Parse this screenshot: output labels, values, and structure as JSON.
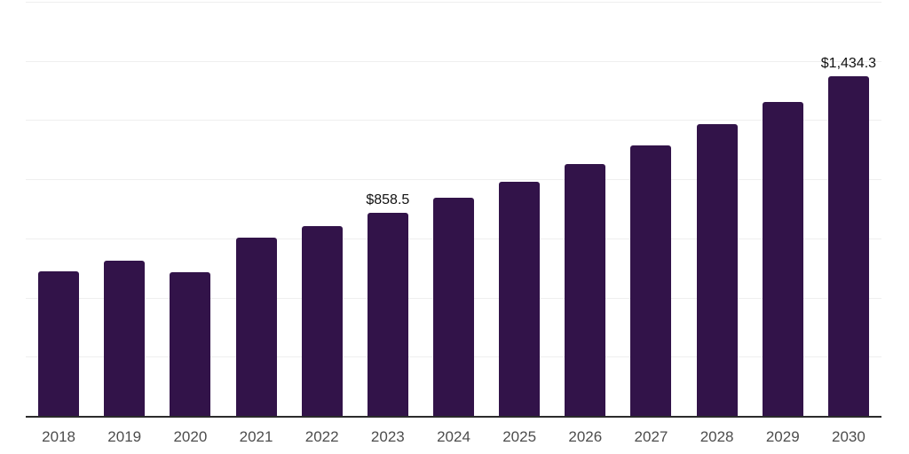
{
  "chart_data": {
    "type": "bar",
    "title": "",
    "xlabel": "",
    "ylabel": "",
    "categories": [
      "2018",
      "2019",
      "2020",
      "2021",
      "2022",
      "2023",
      "2024",
      "2025",
      "2026",
      "2027",
      "2028",
      "2029",
      "2030"
    ],
    "values": [
      610,
      656,
      608,
      754,
      803,
      858.5,
      921,
      990,
      1063,
      1143,
      1233,
      1328,
      1434.3
    ],
    "data_labels": [
      "",
      "",
      "",
      "",
      "",
      "$858.5",
      "",
      "",
      "",
      "",
      "",
      "",
      "$1,434.3"
    ],
    "ylim": [
      0,
      1750
    ],
    "gridline_step": 250,
    "grid": "horizontal-only",
    "legend": "none",
    "colors": {
      "bar": "#321349",
      "axis_line": "#2b2b2b",
      "gridline": "#efefef",
      "tick_label": "#4d4d4d",
      "data_label": "#111111",
      "background": "#ffffff"
    }
  }
}
